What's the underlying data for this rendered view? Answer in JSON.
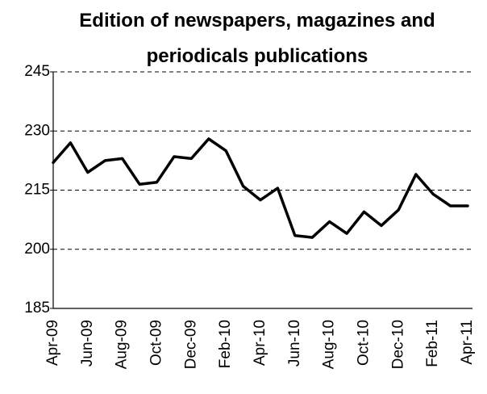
{
  "chart_data": {
    "type": "line",
    "title": "Edition of newspapers, magazines and periodicals publications",
    "categories": [
      "Apr-09",
      null,
      "Jun-09",
      null,
      "Aug-09",
      null,
      "Oct-09",
      null,
      "Dec-09",
      null,
      "Feb-10",
      null,
      "Apr-10",
      null,
      "Jun-10",
      null,
      "Aug-10",
      null,
      "Oct-10",
      null,
      "Dec-10",
      null,
      "Feb-11",
      null,
      "Apr-11"
    ],
    "series": [
      {
        "name": "Edition",
        "color": "#000000",
        "values": [
          222,
          227,
          219.5,
          222.5,
          223,
          216.5,
          217,
          223.5,
          223,
          228,
          225,
          216,
          212.5,
          215.5,
          203.5,
          203,
          207,
          204,
          209.5,
          206,
          210,
          219,
          214,
          211,
          211
        ]
      }
    ],
    "ylim": [
      185,
      245
    ],
    "yticks": [
      185,
      200,
      215,
      230,
      245
    ],
    "grid": true
  }
}
